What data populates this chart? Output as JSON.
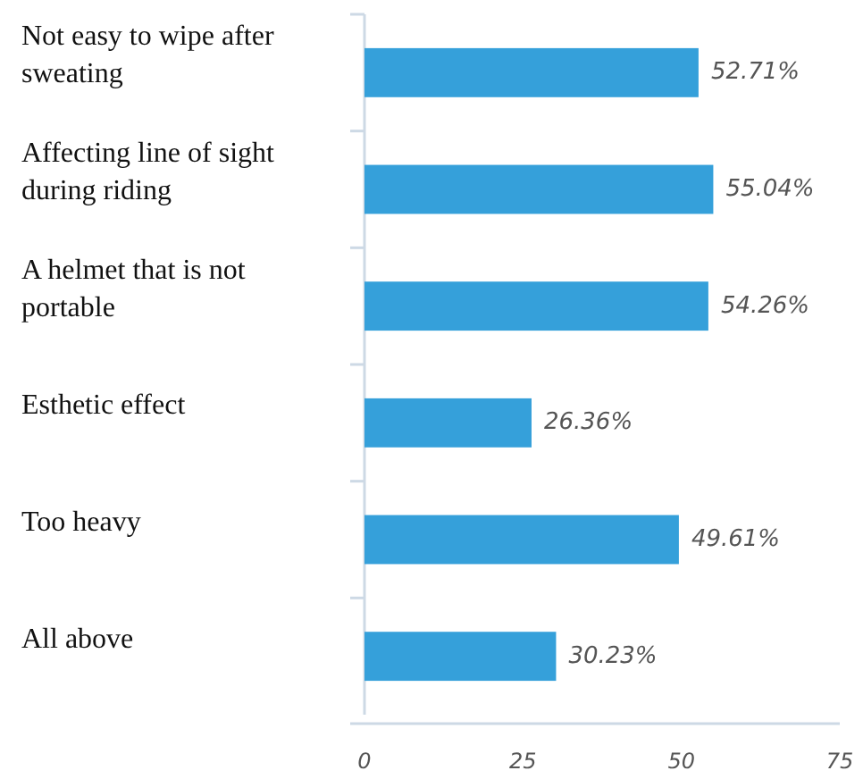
{
  "chart_data": {
    "type": "bar",
    "orientation": "horizontal",
    "categories": [
      "Not easy to wipe after sweating",
      "Affecting line of sight during riding",
      "A helmet that is not portable",
      "Esthetic effect",
      "Too heavy",
      "All above"
    ],
    "values": [
      52.71,
      55.04,
      54.26,
      26.36,
      49.61,
      30.23
    ],
    "value_labels": [
      "52.71%",
      "55.04%",
      "54.26%",
      "26.36%",
      "49.61%",
      "30.23%"
    ],
    "color": "#35a0da",
    "xlim": [
      0,
      75
    ],
    "xticks": [
      0,
      25,
      50,
      75
    ],
    "grid": false
  }
}
